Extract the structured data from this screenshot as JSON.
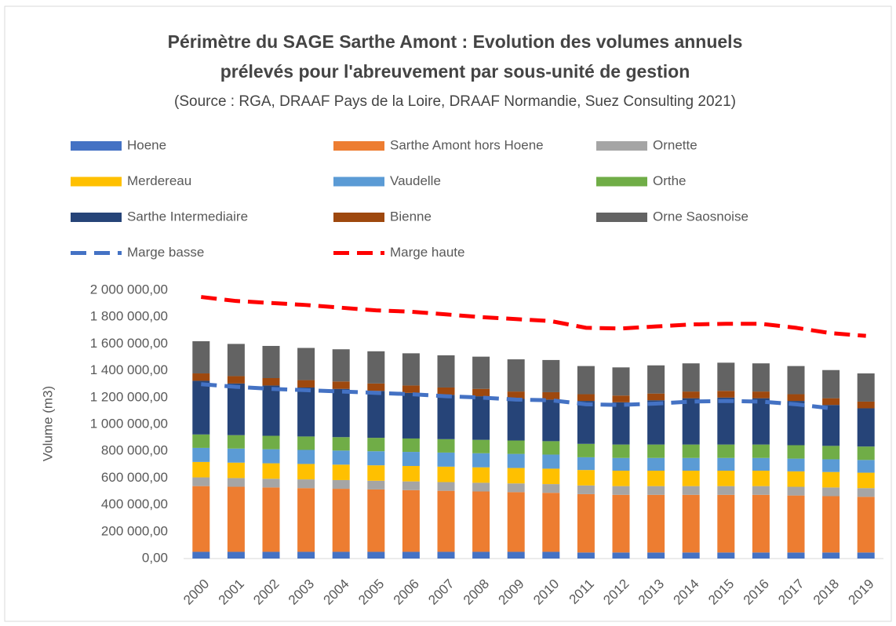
{
  "chart_data": {
    "type": "stacked_bar_line",
    "title": [
      "Périmètre du SAGE Sarthe Amont : Evolution des volumes annuels",
      "prélevés pour l'abreuvement par sous-unité de gestion"
    ],
    "subtitle": "(Source : RGA, DRAAF Pays de la Loire, DRAAF Normandie, Suez Consulting 2021)",
    "y_label": "Volume (m3)",
    "categories": [
      "2000",
      "2001",
      "2002",
      "2003",
      "2004",
      "2005",
      "2006",
      "2007",
      "2008",
      "2009",
      "2010",
      "2011",
      "2012",
      "2013",
      "2014",
      "2015",
      "2016",
      "2017",
      "2018",
      "2019"
    ],
    "series": [
      {
        "name": "Hoene",
        "color": "#4472c4",
        "values": [
          50000,
          50000,
          50000,
          50000,
          50000,
          50000,
          50000,
          50000,
          50000,
          50000,
          50000,
          45000,
          45000,
          45000,
          45000,
          45000,
          45000,
          45000,
          45000,
          45000
        ]
      },
      {
        "name": "Sarthe Amont hors Hoene",
        "color": "#ed7d31",
        "values": [
          490000,
          485000,
          480000,
          475000,
          470000,
          465000,
          460000,
          455000,
          450000,
          445000,
          440000,
          435000,
          430000,
          430000,
          430000,
          430000,
          430000,
          425000,
          420000,
          415000
        ]
      },
      {
        "name": "Ornette",
        "color": "#a5a5a5",
        "values": [
          65000,
          65000,
          65000,
          65000,
          65000,
          65000,
          65000,
          65000,
          65000,
          65000,
          65000,
          65000,
          65000,
          65000,
          65000,
          65000,
          65000,
          65000,
          65000,
          65000
        ]
      },
      {
        "name": "Merdereau",
        "color": "#ffc000",
        "values": [
          115000,
          115000,
          115000,
          115000,
          115000,
          115000,
          115000,
          115000,
          115000,
          115000,
          115000,
          115000,
          115000,
          115000,
          115000,
          115000,
          115000,
          115000,
          115000,
          115000
        ]
      },
      {
        "name": "Vaudelle",
        "color": "#5b9bd5",
        "values": [
          105000,
          105000,
          105000,
          105000,
          105000,
          105000,
          105000,
          105000,
          105000,
          105000,
          105000,
          95000,
          95000,
          95000,
          95000,
          95000,
          95000,
          95000,
          95000,
          95000
        ]
      },
      {
        "name": "Orthe",
        "color": "#70ad47",
        "values": [
          100000,
          100000,
          100000,
          100000,
          100000,
          100000,
          100000,
          100000,
          100000,
          100000,
          100000,
          100000,
          100000,
          100000,
          100000,
          100000,
          100000,
          100000,
          100000,
          100000
        ]
      },
      {
        "name": "Sarthe Intermediaire",
        "color": "#264478",
        "values": [
          400000,
          385000,
          375000,
          365000,
          360000,
          350000,
          340000,
          330000,
          325000,
          310000,
          310000,
          320000,
          315000,
          330000,
          345000,
          350000,
          345000,
          330000,
          305000,
          285000
        ]
      },
      {
        "name": "Bienne",
        "color": "#9e480e",
        "values": [
          55000,
          55000,
          55000,
          55000,
          55000,
          55000,
          55000,
          55000,
          55000,
          55000,
          55000,
          50000,
          50000,
          50000,
          50000,
          50000,
          50000,
          50000,
          50000,
          50000
        ]
      },
      {
        "name": "Orne Saosnoise",
        "color": "#636363",
        "values": [
          240000,
          240000,
          240000,
          240000,
          240000,
          240000,
          240000,
          240000,
          240000,
          240000,
          240000,
          210000,
          210000,
          210000,
          210000,
          210000,
          210000,
          210000,
          210000,
          210000
        ]
      }
    ],
    "lines": [
      {
        "name": "Marge basse",
        "color": "#4472c4",
        "values": [
          1300000,
          1280000,
          1265000,
          1255000,
          1245000,
          1235000,
          1225000,
          1210000,
          1200000,
          1185000,
          1180000,
          1150000,
          1145000,
          1155000,
          1170000,
          1175000,
          1170000,
          1150000,
          1120000,
          null
        ]
      },
      {
        "name": "Marge haute",
        "color": "#ff0000",
        "values": [
          1950000,
          1920000,
          1905000,
          1890000,
          1870000,
          1850000,
          1840000,
          1820000,
          1800000,
          1785000,
          1770000,
          1720000,
          1715000,
          1730000,
          1745000,
          1750000,
          1750000,
          1720000,
          1680000,
          1660000
        ]
      }
    ],
    "ylim": [
      0,
      2000000
    ],
    "yticks": [
      {
        "value": 0,
        "label": "0,00"
      },
      {
        "value": 200000,
        "label": "200 000,00"
      },
      {
        "value": 400000,
        "label": "400 000,00"
      },
      {
        "value": 600000,
        "label": "600 000,00"
      },
      {
        "value": 800000,
        "label": "800 000,00"
      },
      {
        "value": 1000000,
        "label": "1 000 000,00"
      },
      {
        "value": 1200000,
        "label": "1 200 000,00"
      },
      {
        "value": 1400000,
        "label": "1 400 000,00"
      },
      {
        "value": 1600000,
        "label": "1 600 000,00"
      },
      {
        "value": 1800000,
        "label": "1 800 000,00"
      },
      {
        "value": 2000000,
        "label": "2 000 000,00"
      }
    ],
    "grid": false
  }
}
